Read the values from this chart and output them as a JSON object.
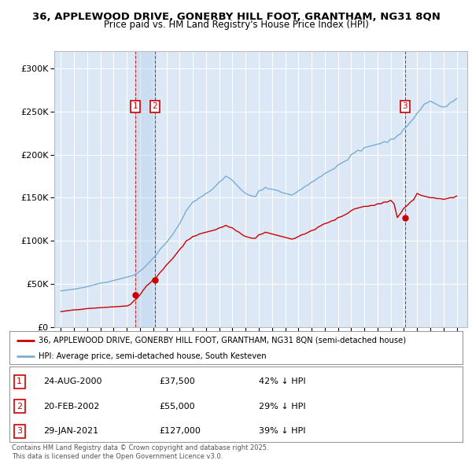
{
  "title_line1": "36, APPLEWOOD DRIVE, GONERBY HILL FOOT, GRANTHAM, NG31 8QN",
  "title_line2": "Price paid vs. HM Land Registry's House Price Index (HPI)",
  "ylim": [
    0,
    320000
  ],
  "xlim_start": 1994.5,
  "xlim_end": 2025.8,
  "yticks": [
    0,
    50000,
    100000,
    150000,
    200000,
    250000,
    300000
  ],
  "ytick_labels": [
    "£0",
    "£50K",
    "£100K",
    "£150K",
    "£200K",
    "£250K",
    "£300K"
  ],
  "bg_color": "#dce8f5",
  "grid_color": "#ffffff",
  "red_line_color": "#cc0000",
  "blue_line_color": "#7aadd4",
  "transactions": [
    {
      "id": 1,
      "date_str": "24-AUG-2000",
      "date_x": 2000.65,
      "price": 37500,
      "pct_str": "42% ↓ HPI"
    },
    {
      "id": 2,
      "date_str": "20-FEB-2002",
      "date_x": 2002.13,
      "price": 55000,
      "pct_str": "29% ↓ HPI"
    },
    {
      "id": 3,
      "date_str": "29-JAN-2021",
      "date_x": 2021.08,
      "price": 127000,
      "pct_str": "39% ↓ HPI"
    }
  ],
  "legend_red_label": "36, APPLEWOOD DRIVE, GONERBY HILL FOOT, GRANTHAM, NG31 8QN (semi-detached house)",
  "legend_blue_label": "HPI: Average price, semi-detached house, South Kesteven",
  "footnote": "Contains HM Land Registry data © Crown copyright and database right 2025.\nThis data is licensed under the Open Government Licence v3.0.",
  "hpi_years": [
    1995,
    1995.25,
    1995.5,
    1995.75,
    1996,
    1996.25,
    1996.5,
    1996.75,
    1997,
    1997.25,
    1997.5,
    1997.75,
    1998,
    1998.25,
    1998.5,
    1998.75,
    1999,
    1999.25,
    1999.5,
    1999.75,
    2000,
    2000.25,
    2000.5,
    2000.75,
    2001,
    2001.25,
    2001.5,
    2001.75,
    2002,
    2002.25,
    2002.5,
    2002.75,
    2003,
    2003.25,
    2003.5,
    2003.75,
    2004,
    2004.25,
    2004.5,
    2004.75,
    2005,
    2005.25,
    2005.5,
    2005.75,
    2006,
    2006.25,
    2006.5,
    2006.75,
    2007,
    2007.25,
    2007.5,
    2007.75,
    2008,
    2008.25,
    2008.5,
    2008.75,
    2009,
    2009.25,
    2009.5,
    2009.75,
    2010,
    2010.25,
    2010.5,
    2010.75,
    2011,
    2011.25,
    2011.5,
    2011.75,
    2012,
    2012.25,
    2012.5,
    2012.75,
    2013,
    2013.25,
    2013.5,
    2013.75,
    2014,
    2014.25,
    2014.5,
    2014.75,
    2015,
    2015.25,
    2015.5,
    2015.75,
    2016,
    2016.25,
    2016.5,
    2016.75,
    2017,
    2017.25,
    2017.5,
    2017.75,
    2018,
    2018.25,
    2018.5,
    2018.75,
    2019,
    2019.25,
    2019.5,
    2019.75,
    2020,
    2020.25,
    2020.5,
    2020.75,
    2021,
    2021.25,
    2021.5,
    2021.75,
    2022,
    2022.25,
    2022.5,
    2022.75,
    2023,
    2023.25,
    2023.5,
    2023.75,
    2024,
    2024.25,
    2024.5,
    2024.75,
    2025
  ],
  "hpi_values": [
    42000,
    42500,
    43000,
    43500,
    44000,
    44500,
    45500,
    46000,
    47000,
    48000,
    49000,
    50000,
    51000,
    51500,
    52000,
    53000,
    54000,
    55000,
    56000,
    57000,
    58000,
    59000,
    60000,
    62000,
    65000,
    68000,
    72000,
    76000,
    80000,
    84000,
    90000,
    94000,
    98000,
    103000,
    108000,
    114000,
    120000,
    127000,
    135000,
    140000,
    145000,
    147000,
    150000,
    152000,
    155000,
    157000,
    160000,
    164000,
    168000,
    171000,
    175000,
    173000,
    170000,
    166000,
    162000,
    158000,
    155000,
    153000,
    152000,
    151000,
    158000,
    159000,
    162000,
    160000,
    160000,
    159000,
    158000,
    156000,
    155000,
    154000,
    153000,
    155000,
    158000,
    160000,
    163000,
    165000,
    168000,
    170000,
    173000,
    175000,
    178000,
    180000,
    182000,
    184000,
    188000,
    190000,
    192000,
    194000,
    200000,
    202000,
    205000,
    204000,
    208000,
    209000,
    210000,
    211000,
    212000,
    213000,
    215000,
    214000,
    218000,
    218000,
    222000,
    224000,
    230000,
    233000,
    238000,
    242000,
    248000,
    252000,
    258000,
    260000,
    262000,
    260000,
    258000,
    256000,
    255000,
    256000,
    260000,
    262000,
    265000
  ],
  "red_years": [
    1995,
    1995.25,
    1995.5,
    1995.75,
    1996,
    1996.25,
    1996.5,
    1996.75,
    1997,
    1997.25,
    1997.5,
    1997.75,
    1998,
    1998.25,
    1998.5,
    1998.75,
    1999,
    1999.25,
    1999.5,
    1999.75,
    2000,
    2000.25,
    2000.5,
    2000.75,
    2001,
    2001.25,
    2001.5,
    2001.75,
    2002,
    2002.25,
    2002.5,
    2002.75,
    2003,
    2003.25,
    2003.5,
    2003.75,
    2004,
    2004.25,
    2004.5,
    2004.75,
    2005,
    2005.25,
    2005.5,
    2005.75,
    2006,
    2006.25,
    2006.5,
    2006.75,
    2007,
    2007.25,
    2007.5,
    2007.75,
    2008,
    2008.25,
    2008.5,
    2008.75,
    2009,
    2009.25,
    2009.5,
    2009.75,
    2010,
    2010.25,
    2010.5,
    2010.75,
    2011,
    2011.25,
    2011.5,
    2011.75,
    2012,
    2012.25,
    2012.5,
    2012.75,
    2013,
    2013.25,
    2013.5,
    2013.75,
    2014,
    2014.25,
    2014.5,
    2014.75,
    2015,
    2015.25,
    2015.5,
    2015.75,
    2016,
    2016.25,
    2016.5,
    2016.75,
    2017,
    2017.25,
    2017.5,
    2017.75,
    2018,
    2018.25,
    2018.5,
    2018.75,
    2019,
    2019.25,
    2019.5,
    2019.75,
    2020,
    2020.25,
    2020.5,
    2020.75,
    2021,
    2021.25,
    2021.5,
    2021.75,
    2022,
    2022.25,
    2022.5,
    2022.75,
    2023,
    2023.25,
    2023.5,
    2023.75,
    2024,
    2024.25,
    2024.5,
    2024.75,
    2025
  ],
  "red_values": [
    18000,
    18500,
    19000,
    19500,
    20000,
    20200,
    20500,
    21000,
    21500,
    21800,
    22000,
    22300,
    22500,
    22800,
    23000,
    23300,
    23500,
    23800,
    24000,
    24300,
    24500,
    26000,
    30000,
    33000,
    37500,
    43000,
    48000,
    51000,
    55000,
    58000,
    63000,
    67000,
    72000,
    76000,
    80000,
    85000,
    90000,
    94000,
    100000,
    102000,
    105000,
    106000,
    108000,
    109000,
    110000,
    111000,
    112000,
    113000,
    115000,
    116000,
    118000,
    116000,
    115000,
    112000,
    110000,
    107000,
    105000,
    104000,
    103000,
    103000,
    107000,
    108000,
    110000,
    109000,
    108000,
    107000,
    106000,
    105000,
    104000,
    103000,
    102000,
    103000,
    105000,
    107000,
    108000,
    110000,
    112000,
    113000,
    116000,
    118000,
    120000,
    121000,
    123000,
    124000,
    127000,
    128000,
    130000,
    132000,
    135000,
    137000,
    138000,
    139000,
    140000,
    140000,
    141000,
    141000,
    143000,
    143000,
    145000,
    145000,
    147000,
    143000,
    127000,
    132000,
    138000,
    141000,
    145000,
    148000,
    155000,
    153000,
    152000,
    151000,
    150000,
    150000,
    149000,
    149000,
    148000,
    149000,
    150000,
    150000,
    152000
  ]
}
